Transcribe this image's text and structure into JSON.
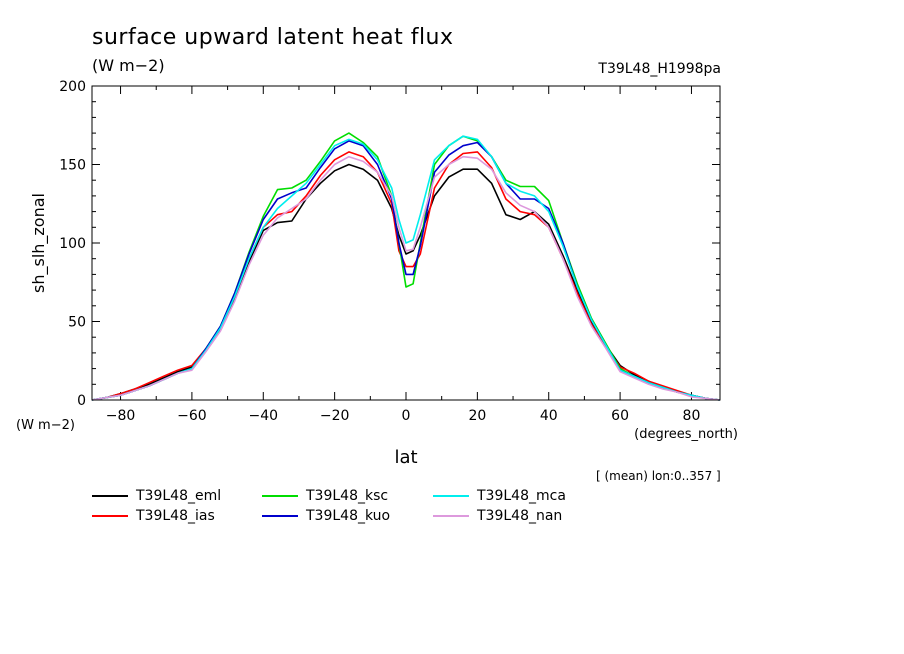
{
  "header": {
    "title": "surface upward latent heat flux",
    "units": "(W m−2)",
    "run_id": "T39L48_H1998pa"
  },
  "footer_note": "[ (mean) lon:0..357 ]",
  "chart_data": {
    "type": "line",
    "title": "surface upward latent heat flux",
    "xlabel": "lat",
    "xunits": "(degrees_north)",
    "ylabel": "sh_slh_zonal",
    "yunits": "(W m−2)",
    "xlim": [
      -88,
      88
    ],
    "ylim": [
      0,
      200
    ],
    "xticks": [
      -80,
      -60,
      -40,
      -20,
      0,
      20,
      40,
      60,
      80
    ],
    "yticks": [
      0,
      50,
      100,
      150,
      200
    ],
    "grid": false,
    "legend_position": "bottom",
    "x": [
      -88,
      -84,
      -80,
      -76,
      -72,
      -68,
      -64,
      -60,
      -56,
      -52,
      -48,
      -44,
      -40,
      -36,
      -32,
      -28,
      -24,
      -20,
      -16,
      -12,
      -8,
      -4,
      -2,
      0,
      2,
      4,
      8,
      12,
      16,
      20,
      24,
      28,
      32,
      36,
      40,
      44,
      48,
      52,
      56,
      60,
      64,
      68,
      72,
      76,
      80,
      84,
      88
    ],
    "series": [
      {
        "name": "T39L48_eml",
        "color": "#000000",
        "values": [
          0,
          1.5,
          4,
          7,
          10,
          14,
          18,
          21,
          32,
          45,
          65,
          88,
          108,
          113,
          114,
          128,
          138,
          146,
          150,
          147,
          140,
          122,
          105,
          93,
          95,
          105,
          130,
          142,
          147,
          147,
          138,
          118,
          115,
          120,
          112,
          92,
          70,
          50,
          35,
          22,
          16,
          12,
          8,
          5,
          3,
          1,
          0
        ]
      },
      {
        "name": "T39L48_ias",
        "color": "#ff0000",
        "values": [
          0,
          1.5,
          4,
          7,
          11,
          15,
          19,
          22,
          33,
          46,
          66,
          90,
          110,
          118,
          120,
          130,
          143,
          153,
          158,
          155,
          145,
          125,
          95,
          85,
          85,
          93,
          135,
          150,
          157,
          158,
          148,
          128,
          120,
          118,
          110,
          90,
          68,
          48,
          34,
          21,
          17,
          12,
          9,
          6,
          3,
          1,
          0
        ]
      },
      {
        "name": "T39L48_ksc",
        "color": "#00dd00",
        "values": [
          0,
          1.5,
          3,
          6,
          9,
          13,
          17,
          20,
          33,
          47,
          68,
          94,
          117,
          134,
          135,
          140,
          152,
          165,
          170,
          164,
          155,
          130,
          100,
          72,
          74,
          100,
          150,
          162,
          168,
          165,
          155,
          140,
          136,
          136,
          127,
          100,
          74,
          52,
          36,
          20,
          15,
          11,
          8,
          5,
          3,
          1,
          0
        ]
      },
      {
        "name": "T39L48_kuo",
        "color": "#0000cc",
        "values": [
          0,
          1.5,
          3,
          6,
          9,
          13,
          17,
          20,
          33,
          47,
          68,
          93,
          115,
          128,
          132,
          135,
          148,
          160,
          165,
          162,
          150,
          128,
          100,
          80,
          80,
          98,
          145,
          156,
          162,
          164,
          155,
          138,
          128,
          128,
          122,
          100,
          72,
          51,
          35,
          19,
          15,
          11,
          8,
          5,
          3,
          1,
          0
        ]
      },
      {
        "name": "T39L48_mca",
        "color": "#00eeee",
        "values": [
          0,
          1.5,
          3,
          6,
          9,
          13,
          17,
          20,
          32,
          46,
          66,
          90,
          110,
          122,
          130,
          138,
          150,
          162,
          166,
          163,
          153,
          135,
          115,
          100,
          102,
          118,
          153,
          162,
          168,
          166,
          155,
          138,
          133,
          130,
          120,
          98,
          72,
          51,
          35,
          19,
          15,
          11,
          8,
          5,
          3,
          1,
          0
        ]
      },
      {
        "name": "T39L48_nan",
        "color": "#dd99dd",
        "values": [
          0,
          1.5,
          3,
          6,
          9,
          13,
          17,
          19,
          31,
          44,
          63,
          86,
          105,
          116,
          122,
          128,
          140,
          150,
          155,
          152,
          145,
          130,
          110,
          95,
          96,
          110,
          142,
          150,
          155,
          154,
          147,
          132,
          124,
          120,
          110,
          90,
          66,
          47,
          33,
          18,
          14,
          10,
          7,
          5,
          2,
          1,
          0
        ]
      }
    ]
  }
}
